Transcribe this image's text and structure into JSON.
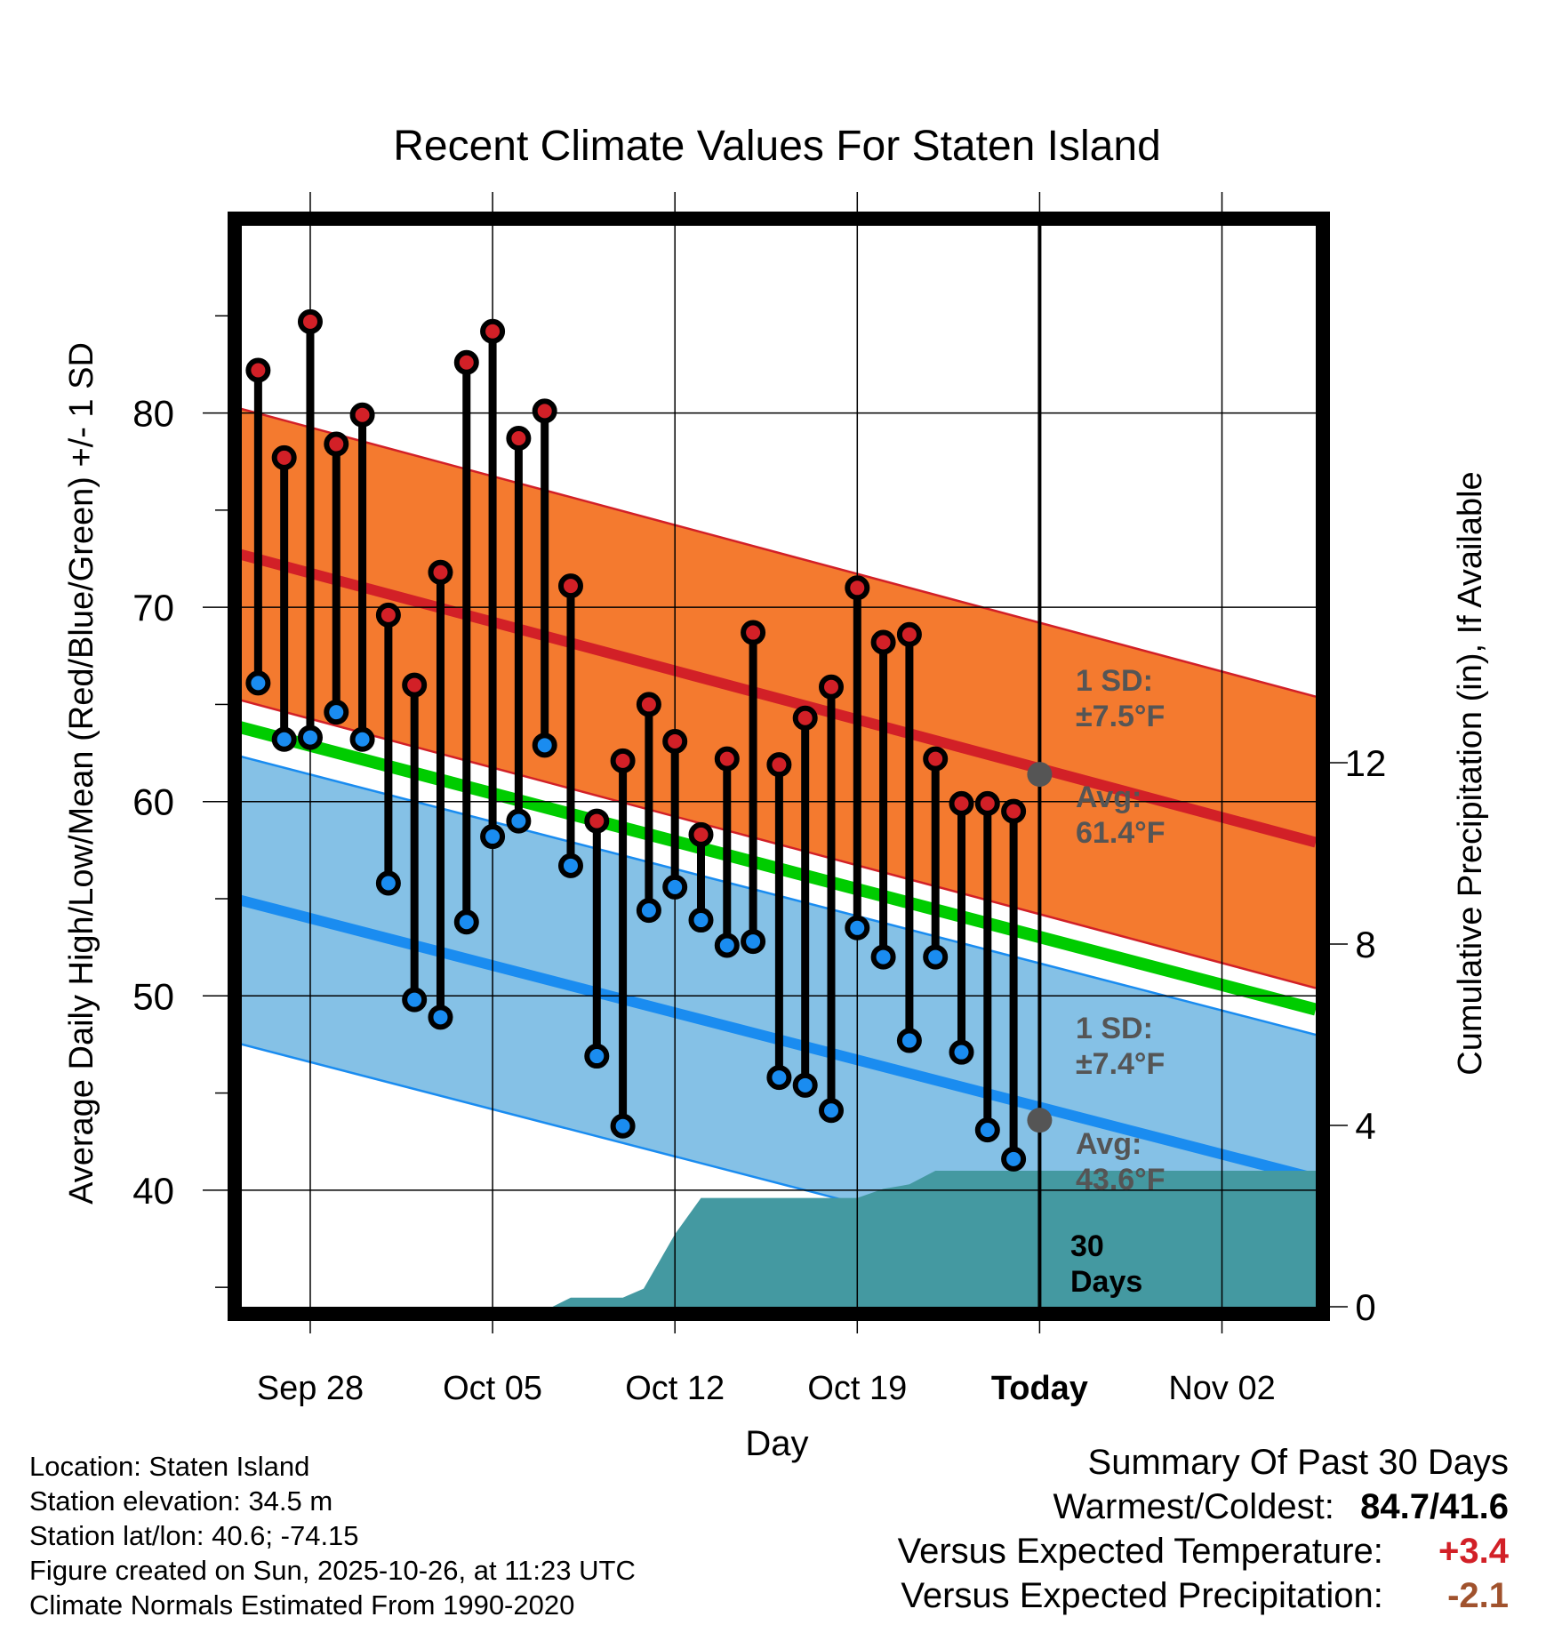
{
  "chart_data": {
    "type": "line",
    "title": "Recent Climate Values For Staten Island",
    "xlabel": "Day",
    "ylabel": "Average Daily High/Low/Mean (Red/Blue/Green) +/- 1 SD",
    "y2label": "Cumulative Precipitation (in), If Available",
    "x_axis_day_range": [
      -0.9,
      40.6
    ],
    "ylim": [
      34,
      90
    ],
    "y2lim": [
      0,
      24
    ],
    "x_ticks": [
      {
        "day": 2,
        "label": "Sep 28"
      },
      {
        "day": 9,
        "label": "Oct 05"
      },
      {
        "day": 16,
        "label": "Oct 12"
      },
      {
        "day": 23,
        "label": "Oct 19"
      },
      {
        "day": 30,
        "label": "Today"
      },
      {
        "day": 37,
        "label": "Nov 02"
      }
    ],
    "y_ticks": [
      40,
      50,
      60,
      70,
      80
    ],
    "y2_ticks": [
      0,
      4,
      8,
      12
    ],
    "today_day": 30,
    "days": [
      0,
      1,
      2,
      3,
      4,
      5,
      6,
      7,
      8,
      9,
      10,
      11,
      12,
      13,
      14,
      15,
      16,
      17,
      18,
      19,
      20,
      21,
      22,
      23,
      24,
      25,
      26,
      27,
      28,
      29
    ],
    "highs": [
      82.2,
      77.7,
      84.7,
      78.4,
      79.9,
      69.6,
      66.0,
      71.8,
      82.6,
      84.2,
      78.7,
      80.1,
      71.1,
      59.0,
      62.1,
      65.0,
      63.1,
      58.3,
      62.2,
      68.7,
      61.9,
      64.3,
      65.9,
      71.0,
      68.2,
      68.6,
      62.2,
      59.9,
      59.9,
      59.5
    ],
    "lows": [
      66.1,
      63.2,
      63.3,
      64.6,
      63.2,
      55.8,
      49.8,
      48.9,
      53.8,
      58.2,
      59.0,
      62.9,
      56.7,
      46.9,
      43.3,
      54.4,
      55.6,
      53.9,
      52.6,
      52.8,
      45.8,
      45.4,
      44.1,
      53.5,
      52.0,
      47.7,
      52.0,
      47.1,
      43.1,
      41.6
    ],
    "normal_high": {
      "start": 72.8,
      "end": 57.9,
      "sd": 7.5
    },
    "normal_low": {
      "start": 55.0,
      "end": 40.6,
      "sd": 7.4
    },
    "normal_mean": {
      "start": 63.9,
      "end": 49.3
    },
    "precip_cumulative": [
      {
        "day": 11.3,
        "value": 0
      },
      {
        "day": 12.0,
        "value": 0.2
      },
      {
        "day": 14.0,
        "value": 0.2
      },
      {
        "day": 14.8,
        "value": 0.4
      },
      {
        "day": 16.0,
        "value": 1.6
      },
      {
        "day": 17.0,
        "value": 2.4
      },
      {
        "day": 23.0,
        "value": 2.4
      },
      {
        "day": 24.0,
        "value": 2.6
      },
      {
        "day": 25.0,
        "value": 2.7
      },
      {
        "day": 26.0,
        "value": 3.0
      },
      {
        "day": 40.6,
        "value": 3.0
      }
    ],
    "high_sd_label": [
      "1 SD:",
      "±7.5°F"
    ],
    "high_avg_label": [
      "Avg:",
      "61.4°F"
    ],
    "low_sd_label": [
      "1 SD:",
      "±7.4°F"
    ],
    "low_avg_label": [
      "Avg:",
      "43.6°F"
    ],
    "today_high_avg": 61.4,
    "today_low_avg": 43.6,
    "precip_period_label": [
      "30",
      "Days"
    ],
    "colors": {
      "high_band": "#f47a2f",
      "high_line": "#d22027",
      "low_band": "#85c1e6",
      "low_line": "#1a8cf0",
      "mean_line": "#00cc00",
      "precip": "#4499a1",
      "high_dot": "#d22027",
      "low_dot": "#1a8cf0",
      "label_gray": "#555555"
    }
  },
  "info": {
    "location": "Location: Staten Island",
    "elevation": "Station elevation: 34.5 m",
    "latlon": "Station lat/lon: 40.6; -74.15",
    "created": "Figure created on Sun, 2025-10-26, at 11:23 UTC",
    "normals": "Climate Normals Estimated From 1990-2020"
  },
  "summary": {
    "title": "Summary Of Past 30 Days",
    "warm_cold_label": "Warmest/Coldest:",
    "warm_cold_value": "84.7/41.6",
    "temp_label": "Versus Expected Temperature:",
    "temp_value": "+3.4",
    "temp_color": "#d22027",
    "precip_label": "Versus Expected Precipitation:",
    "precip_value": "-2.1",
    "precip_color": "#a0522d"
  }
}
